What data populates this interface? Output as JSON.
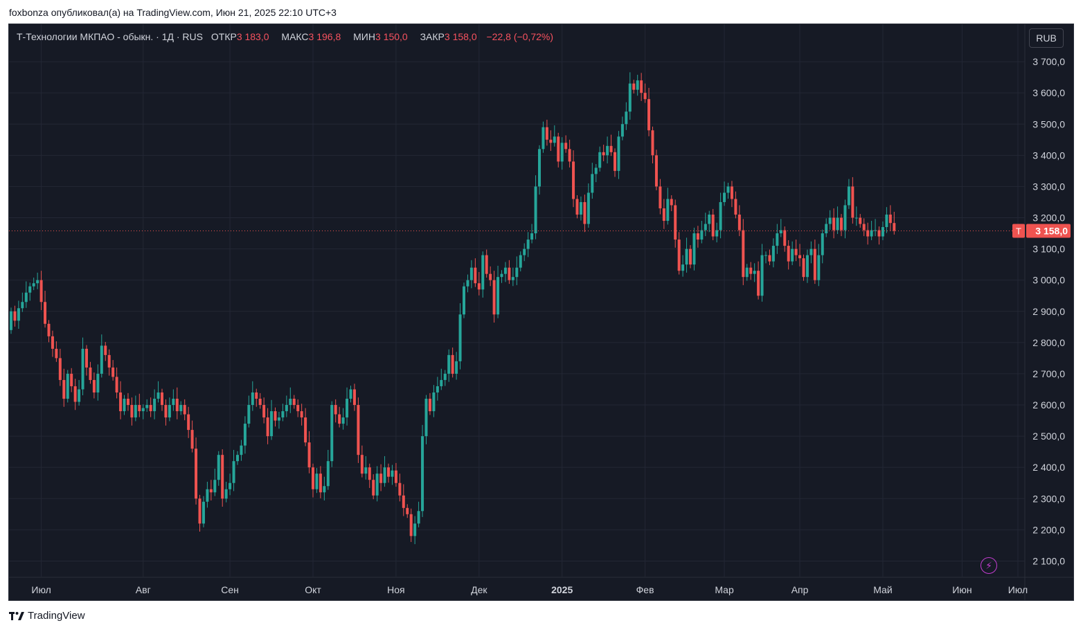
{
  "header": {
    "published_by": "foxbonza опубликовал(а) на TradingView.com, Июн 21, 2025 22:10 UTC+3"
  },
  "legend": {
    "symbol": "Т-Технологии МКПАО - обыкн. · 1Д · RUS",
    "open_label": "ОТКР",
    "open_value": "3 183,0",
    "high_label": "МАКС",
    "high_value": "3 196,8",
    "low_label": "МИН",
    "low_value": "3 150,0",
    "close_label": "ЗАКР",
    "close_value": "3 158,0",
    "change": "−22,8 (−0,72%)"
  },
  "currency_button": "RUB",
  "last_price": {
    "ticker": "T",
    "value": "3 158,0"
  },
  "footer": {
    "brand": "TradingView"
  },
  "colors": {
    "background": "#161a25",
    "up": "#26a69a",
    "down": "#ef5350",
    "grid": "#232735",
    "text": "#d1d4dc"
  },
  "chart_data": {
    "type": "candlestick",
    "currency": "RUB",
    "ylim": [
      2030,
      3820
    ],
    "yticks": [
      "2 100,0",
      "2 200,0",
      "2 300,0",
      "2 400,0",
      "2 500,0",
      "2 600,0",
      "2 700,0",
      "2 800,0",
      "2 900,0",
      "3 000,0",
      "3 100,0",
      "3 200,0",
      "3 300,0",
      "3 400,0",
      "3 500,0",
      "3 600,0",
      "3 700,0"
    ],
    "ytick_values": [
      2100,
      2200,
      2300,
      2400,
      2500,
      2600,
      2700,
      2800,
      2900,
      3000,
      3100,
      3200,
      3300,
      3400,
      3500,
      3600,
      3700
    ],
    "xticks": [
      "Июл",
      "Авг",
      "Сен",
      "Окт",
      "Ноя",
      "Дек",
      "2025",
      "Фев",
      "Мар",
      "Апр",
      "Май",
      "Июн",
      "Июл"
    ],
    "xtick_bold": [
      false,
      false,
      false,
      false,
      false,
      false,
      true,
      false,
      false,
      false,
      false,
      false,
      false
    ],
    "xtick_index": [
      8,
      35,
      58,
      80,
      102,
      124,
      146,
      168,
      189,
      209,
      231,
      252,
      273
    ],
    "last_price": 3158.0,
    "close": [
      2900,
      2870,
      2910,
      2930,
      2960,
      2980,
      2990,
      3000,
      2930,
      2860,
      2820,
      2780,
      2750,
      2680,
      2620,
      2700,
      2660,
      2610,
      2650,
      2780,
      2720,
      2680,
      2640,
      2700,
      2790,
      2760,
      2720,
      2690,
      2640,
      2580,
      2620,
      2600,
      2560,
      2600,
      2580,
      2590,
      2600,
      2580,
      2620,
      2640,
      2600,
      2560,
      2600,
      2620,
      2580,
      2600,
      2570,
      2520,
      2460,
      2300,
      2220,
      2290,
      2330,
      2320,
      2360,
      2440,
      2300,
      2330,
      2350,
      2420,
      2440,
      2470,
      2540,
      2600,
      2640,
      2620,
      2600,
      2560,
      2500,
      2580,
      2550,
      2560,
      2580,
      2600,
      2620,
      2600,
      2580,
      2560,
      2480,
      2400,
      2330,
      2380,
      2320,
      2340,
      2420,
      2600,
      2570,
      2540,
      2560,
      2620,
      2650,
      2600,
      2440,
      2380,
      2400,
      2360,
      2310,
      2380,
      2350,
      2400,
      2370,
      2390,
      2350,
      2310,
      2270,
      2250,
      2180,
      2220,
      2260,
      2500,
      2620,
      2580,
      2640,
      2660,
      2680,
      2700,
      2760,
      2700,
      2740,
      2890,
      2980,
      3000,
      3040,
      2990,
      2970,
      3080,
      3020,
      3000,
      2890,
      3010,
      3020,
      3040,
      3000,
      3010,
      3040,
      3080,
      3100,
      3130,
      3150,
      3300,
      3420,
      3490,
      3450,
      3440,
      3460,
      3380,
      3440,
      3420,
      3380,
      3260,
      3210,
      3250,
      3180,
      3280,
      3340,
      3360,
      3410,
      3400,
      3430,
      3410,
      3350,
      3460,
      3500,
      3540,
      3630,
      3610,
      3640,
      3600,
      3580,
      3480,
      3400,
      3300,
      3230,
      3190,
      3260,
      3240,
      3130,
      3030,
      3050,
      3100,
      3050,
      3150,
      3130,
      3160,
      3180,
      3210,
      3140,
      3160,
      3250,
      3280,
      3300,
      3260,
      3210,
      3160,
      3010,
      3040,
      3020,
      3030,
      2950,
      3080,
      3080,
      3060,
      3110,
      3150,
      3160,
      3110,
      3060,
      3100,
      3080,
      3070,
      3010,
      3080,
      3100,
      3000,
      3080,
      3150,
      3180,
      3200,
      3160,
      3200,
      3160,
      3240,
      3300,
      3200,
      3200,
      3180,
      3160,
      3140,
      3160,
      3160,
      3140,
      3170,
      3210,
      3183,
      3158
    ],
    "note": "close values approximated from the chart; open values derived from previous close"
  }
}
